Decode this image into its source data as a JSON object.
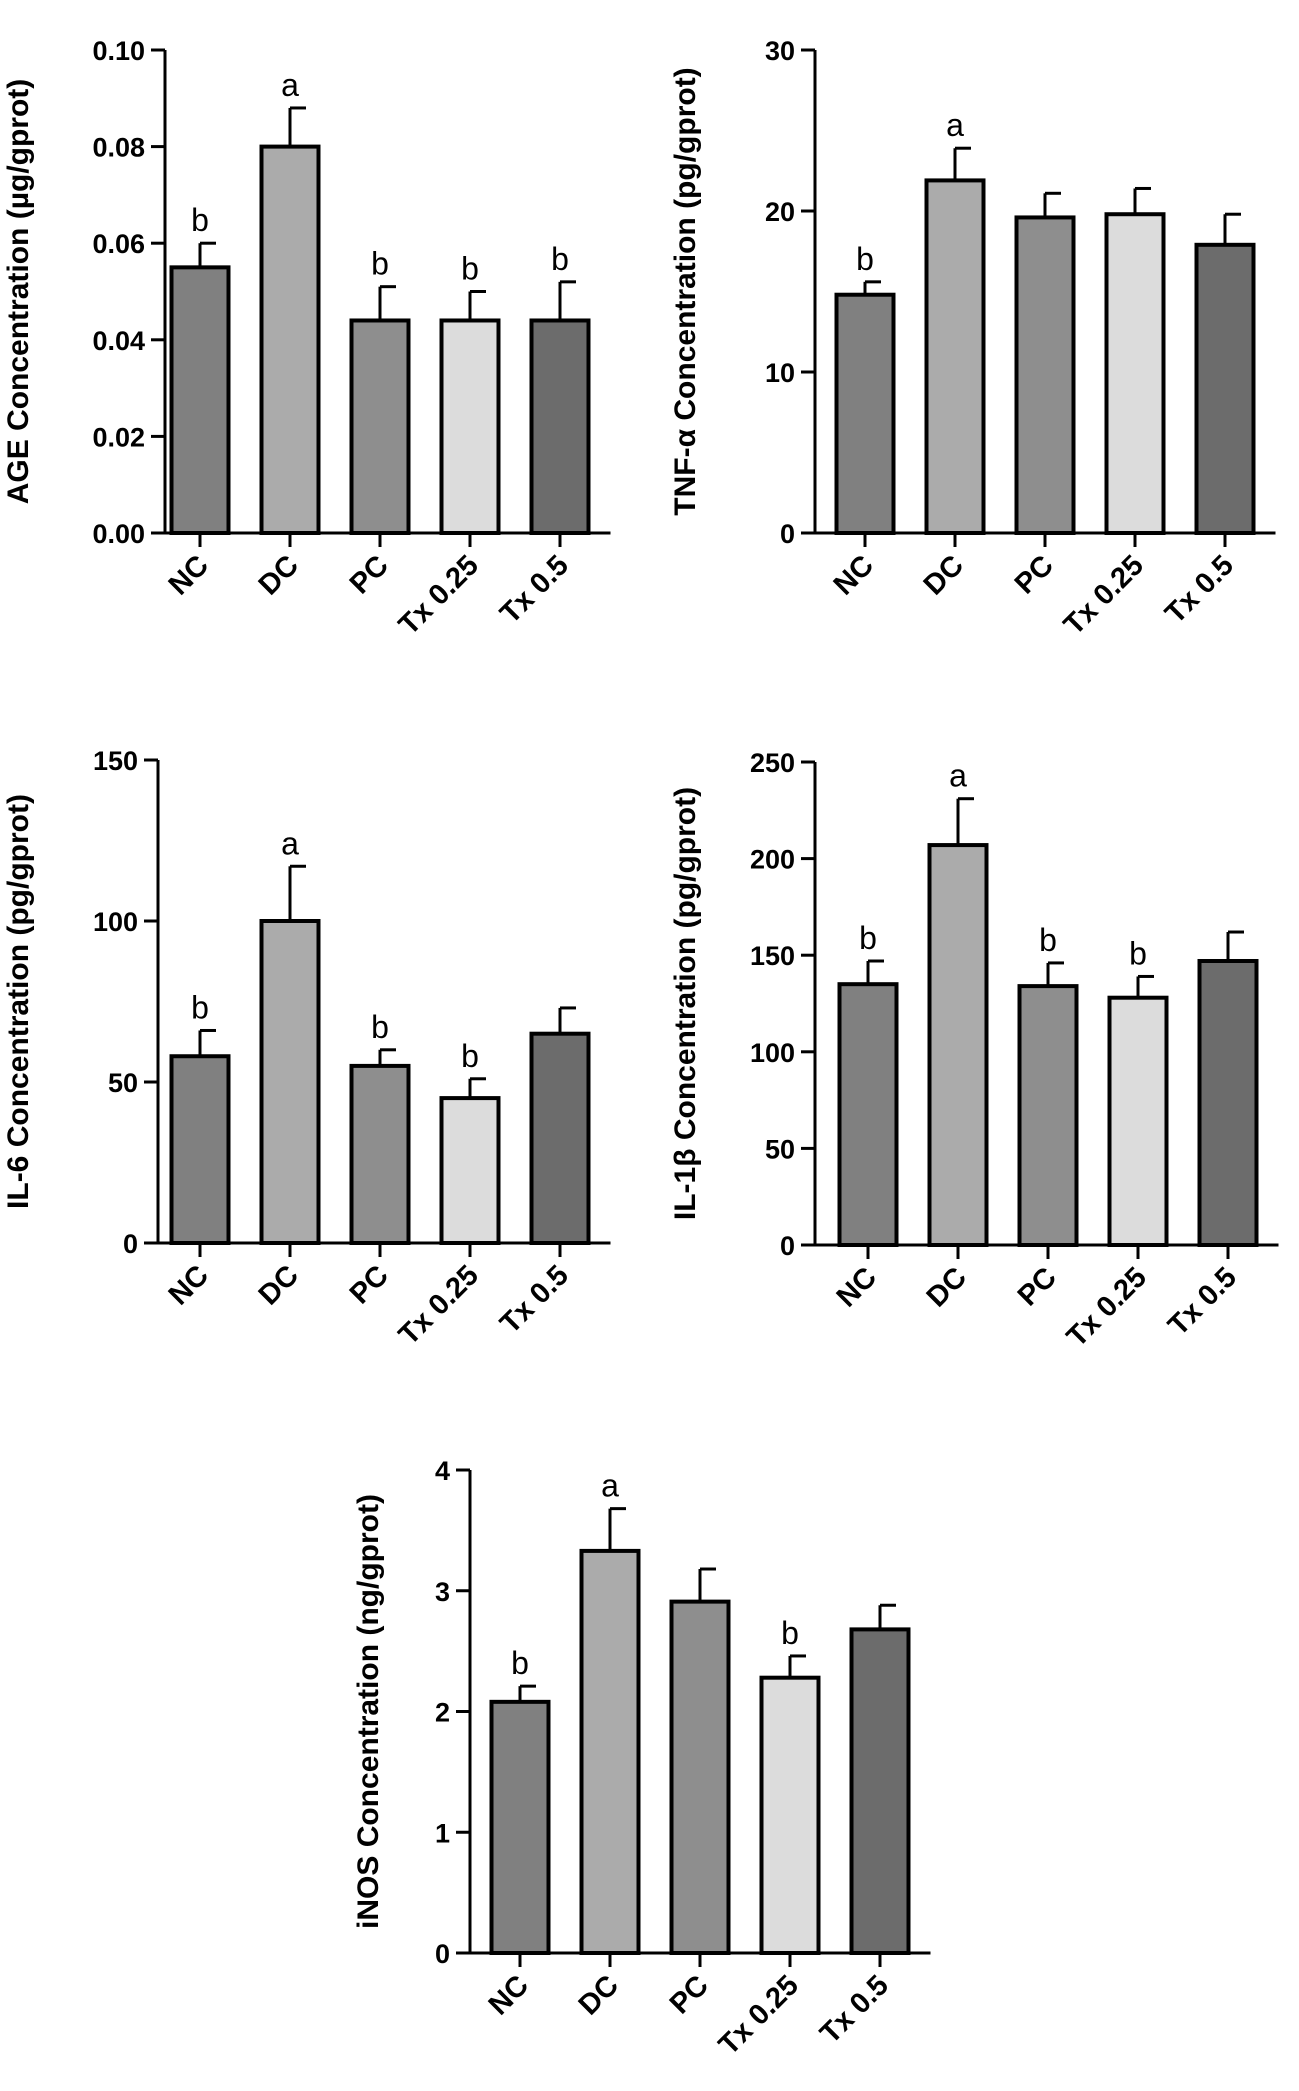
{
  "chart_data": [
    {
      "type": "bar",
      "categories": [
        "NC",
        "DC",
        "PC",
        "Tx 0.25",
        "Tx 0.5"
      ],
      "values": [
        0.055,
        0.08,
        0.044,
        0.044,
        0.044
      ],
      "errors": [
        0.005,
        0.008,
        0.007,
        0.006,
        0.008
      ],
      "sig_labels": [
        "b",
        "a",
        "b",
        "b",
        "b"
      ],
      "ylabel": "AGE Concentration (µg/gprot)",
      "ylim": [
        0,
        0.1
      ],
      "yticks": [
        "0.00",
        "0.02",
        "0.04",
        "0.06",
        "0.08",
        "0.10"
      ],
      "ytick_values": [
        0,
        0.02,
        0.04,
        0.06,
        0.08,
        0.1
      ]
    },
    {
      "type": "bar",
      "categories": [
        "NC",
        "DC",
        "PC",
        "Tx 0.25",
        "Tx 0.5"
      ],
      "values": [
        14.8,
        21.9,
        19.6,
        19.8,
        17.9
      ],
      "errors": [
        0.8,
        2.0,
        1.5,
        1.6,
        1.9
      ],
      "sig_labels": [
        "b",
        "a",
        "",
        "",
        ""
      ],
      "ylabel": "TNF-α Concentration (pg/gprot)",
      "ylim": [
        0,
        30
      ],
      "yticks": [
        "0",
        "10",
        "20",
        "30"
      ],
      "ytick_values": [
        0,
        10,
        20,
        30
      ]
    },
    {
      "type": "bar",
      "categories": [
        "NC",
        "DC",
        "PC",
        "Tx 0.25",
        "Tx 0.5"
      ],
      "values": [
        58,
        100,
        55,
        45,
        65
      ],
      "errors": [
        8,
        17,
        5,
        6,
        8
      ],
      "sig_labels": [
        "b",
        "a",
        "b",
        "b",
        ""
      ],
      "ylabel": "IL-6 Concentration (pg/gprot)",
      "ylim": [
        0,
        150
      ],
      "yticks": [
        "0",
        "50",
        "100",
        "150"
      ],
      "ytick_values": [
        0,
        50,
        100,
        150
      ]
    },
    {
      "type": "bar",
      "categories": [
        "NC",
        "DC",
        "PC",
        "Tx 0.25",
        "Tx 0.5"
      ],
      "values": [
        135,
        207,
        134,
        128,
        147
      ],
      "errors": [
        12,
        24,
        12,
        11,
        15
      ],
      "sig_labels": [
        "b",
        "a",
        "b",
        "b",
        ""
      ],
      "ylabel": "IL-1β Concentration (pg/gprot)",
      "ylim": [
        0,
        250
      ],
      "yticks": [
        "0",
        "50",
        "100",
        "150",
        "200",
        "250"
      ],
      "ytick_values": [
        0,
        50,
        100,
        150,
        200,
        250
      ]
    },
    {
      "type": "bar",
      "categories": [
        "NC",
        "DC",
        "PC",
        "Tx 0.25",
        "Tx 0.5"
      ],
      "values": [
        2.08,
        3.33,
        2.91,
        2.28,
        2.68
      ],
      "errors": [
        0.13,
        0.35,
        0.27,
        0.18,
        0.2
      ],
      "sig_labels": [
        "b",
        "a",
        "",
        "b",
        ""
      ],
      "ylabel": "iNOS Concentration (ng/gprot)",
      "ylim": [
        0,
        4
      ],
      "yticks": [
        "0",
        "1",
        "2",
        "3",
        "4"
      ],
      "ytick_values": [
        0,
        1,
        2,
        3,
        4
      ]
    }
  ],
  "colors": {
    "bar_fills": [
      "#808080",
      "#ababab",
      "#8e8e8e",
      "#dcdcdc",
      "#6c6c6c"
    ],
    "stroke": "#000000"
  }
}
